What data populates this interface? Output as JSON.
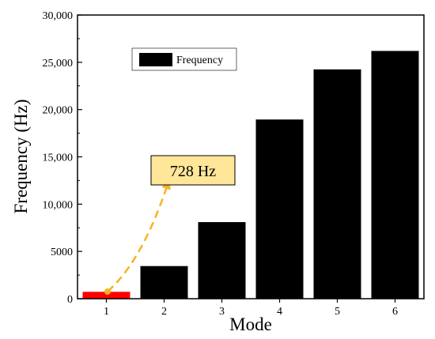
{
  "chart_data": {
    "type": "bar",
    "xlabel": "Mode",
    "ylabel": "Frequency (Hz)",
    "categories": [
      "1",
      "2",
      "3",
      "4",
      "5",
      "6"
    ],
    "series": [
      {
        "name": "Frequency",
        "values": [
          728,
          3450,
          8100,
          18950,
          24250,
          26200
        ]
      }
    ],
    "ylim": [
      0,
      30000
    ],
    "yticks": [
      0,
      5000,
      10000,
      15000,
      20000,
      25000,
      30000
    ],
    "ytick_labels": [
      "0",
      "5000",
      "10,000",
      "15,000",
      "20,000",
      "25,000",
      "30,000"
    ],
    "legend_position": "top-left",
    "highlight": {
      "category": "1",
      "color": "#ff0000"
    },
    "bar_color": "#000000",
    "annotation": {
      "text": "728 Hz",
      "target_category": "1",
      "box_fill": "#ffe699",
      "arrow_color": "#f5b324"
    },
    "grid": false
  }
}
